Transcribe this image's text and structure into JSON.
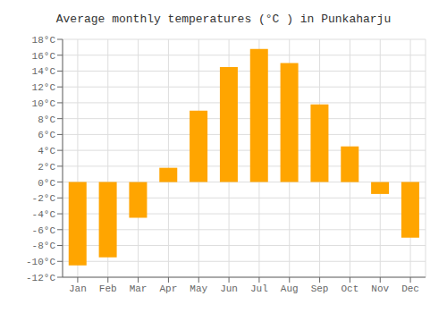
{
  "chart_data": {
    "type": "bar",
    "title": "Average monthly temperatures (°C ) in Punkaharju",
    "categories": [
      "Jan",
      "Feb",
      "Mar",
      "Apr",
      "May",
      "Jun",
      "Jul",
      "Aug",
      "Sep",
      "Oct",
      "Nov",
      "Dec"
    ],
    "values": [
      -10.5,
      -9.5,
      -4.5,
      1.8,
      9.0,
      14.5,
      16.8,
      15.0,
      9.8,
      4.5,
      -1.5,
      -7.0
    ],
    "color": "#FFA500",
    "ylim": [
      -12,
      18
    ],
    "yticks": [
      {
        "value": -12,
        "label": "-12°C"
      },
      {
        "value": -10,
        "label": "-10°C"
      },
      {
        "value": -8,
        "label": "-8°C"
      },
      {
        "value": -6,
        "label": "-6°C"
      },
      {
        "value": -4,
        "label": "-4°C"
      },
      {
        "value": -2,
        "label": "-2°C"
      },
      {
        "value": 0,
        "label": "0°C"
      },
      {
        "value": 2,
        "label": "2°C"
      },
      {
        "value": 4,
        "label": "4°C"
      },
      {
        "value": 6,
        "label": "6°C"
      },
      {
        "value": 8,
        "label": "8°C"
      },
      {
        "value": 10,
        "label": "10°C"
      },
      {
        "value": 12,
        "label": "12°C"
      },
      {
        "value": 14,
        "label": "14°C"
      },
      {
        "value": 16,
        "label": "16°C"
      },
      {
        "value": 18,
        "label": "18°C"
      }
    ],
    "grid": true
  }
}
